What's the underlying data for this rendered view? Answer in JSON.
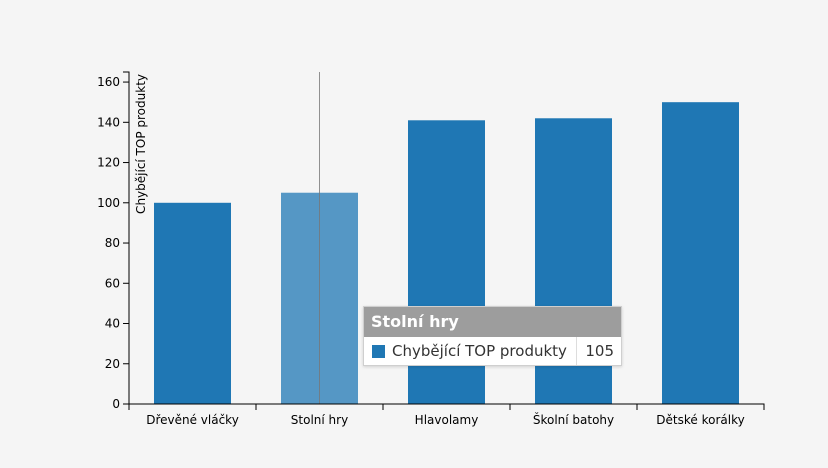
{
  "chart_data": {
    "type": "bar",
    "categories": [
      "Dřevěné vláčky",
      "Stolní hry",
      "Hlavolamy",
      "Školní batohy",
      "Dětské korálky"
    ],
    "series": [
      {
        "name": "Chybějící TOP produkty",
        "values": [
          100,
          105,
          141,
          142,
          150
        ]
      }
    ],
    "ylabel": "Chybějící TOP produkty",
    "xlabel": "",
    "ylim": [
      0,
      165
    ],
    "yticks": [
      0,
      20,
      40,
      60,
      80,
      100,
      120,
      140,
      160
    ],
    "bar_color": "#1f77b4",
    "highlighted_category": "Stolní hry"
  },
  "tooltip": {
    "title": "Stolní hry",
    "series_name": "Chybějící TOP produkty",
    "value": "105",
    "swatch_color": "#1f77b4"
  }
}
